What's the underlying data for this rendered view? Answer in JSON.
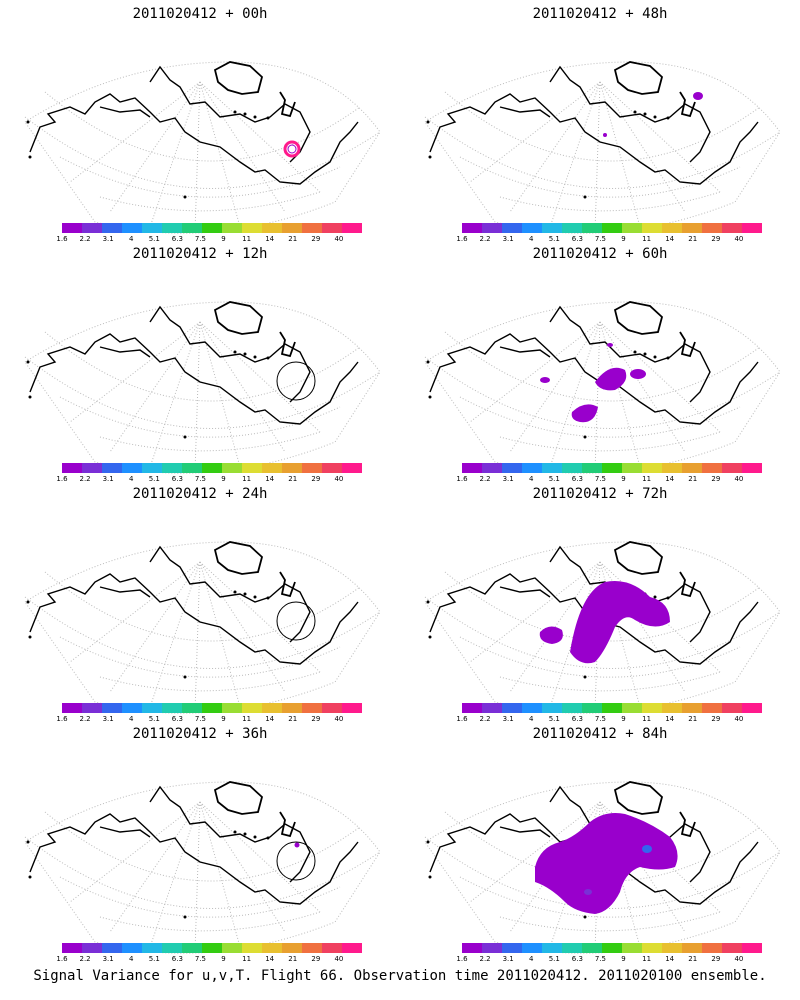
{
  "panels": [
    {
      "title": "2011020412 + 00h",
      "region": "left-0",
      "signal": "ring"
    },
    {
      "title": "2011020412 + 48h",
      "region": "right-0",
      "signal": "small"
    },
    {
      "title": "2011020412 + 12h",
      "region": "left-1",
      "signal": "circle"
    },
    {
      "title": "2011020412 + 60h",
      "region": "right-1",
      "signal": "medium"
    },
    {
      "title": "2011020412 + 24h",
      "region": "left-2",
      "signal": "circle"
    },
    {
      "title": "2011020412 + 72h",
      "region": "right-2",
      "signal": "large"
    },
    {
      "title": "2011020412 + 36h",
      "region": "left-3",
      "signal": "circle-dot"
    },
    {
      "title": "2011020412 + 84h",
      "region": "right-3",
      "signal": "xlarge"
    }
  ],
  "colorbar": {
    "labels": [
      "1.6",
      "2.2",
      "3.1",
      "4",
      "5.1",
      "6.3",
      "7.5",
      "9",
      "11",
      "14",
      "21",
      "29",
      "40"
    ],
    "colors": [
      "#9900cc",
      "#7a2fd6",
      "#3366ee",
      "#1e90ff",
      "#22b8e6",
      "#21ccb0",
      "#22cc77",
      "#33cc11",
      "#99dd33",
      "#dddd33",
      "#e8c030",
      "#e8a030",
      "#f07040",
      "#f04060",
      "#ff1a8c"
    ]
  },
  "caption": "Signal Variance for u,v,T. Flight 66. Observation time 2011020412. 2011020100 ensemble."
}
